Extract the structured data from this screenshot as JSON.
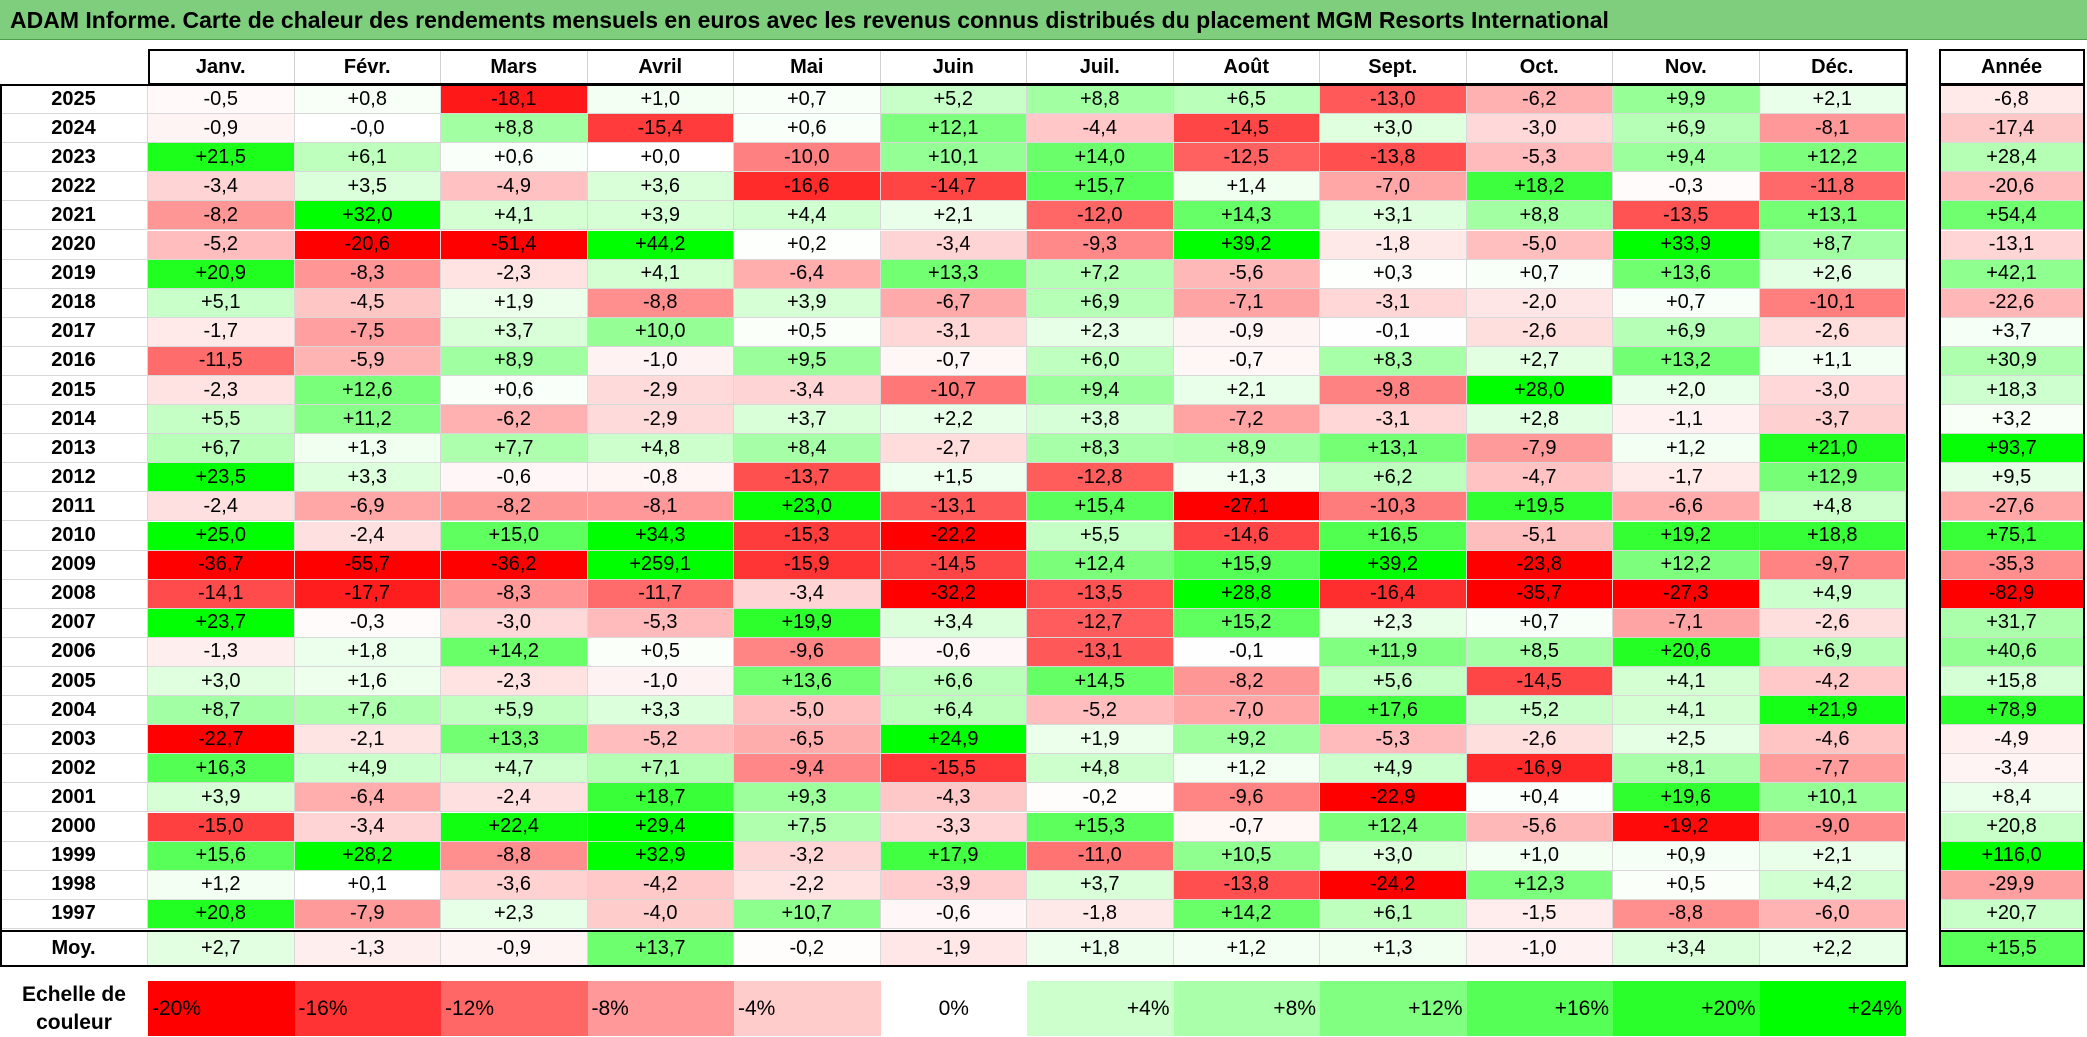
{
  "title": "ADAM Informe. Carte de chaleur des rendements mensuels en euros avec les revenus connus distribués du placement MGM Resorts International",
  "chart_data": {
    "type": "heatmap",
    "title": "ADAM Informe. Carte de chaleur des rendements mensuels en euros avec les revenus connus distribués du placement MGM Resorts International",
    "months": [
      "Janv.",
      "Févr.",
      "Mars",
      "Avril",
      "Mai",
      "Juin",
      "Juil.",
      "Août",
      "Sept.",
      "Oct.",
      "Nov.",
      "Déc."
    ],
    "year_column_label": "Année",
    "rows": [
      {
        "year": "2025",
        "values": [
          "-0,5",
          "+0,8",
          "-18,1",
          "+1,0",
          "+0,7",
          "+5,2",
          "+8,8",
          "+6,5",
          "-13,0",
          "-6,2",
          "+9,9",
          "+2,1"
        ],
        "annual": "-6,8"
      },
      {
        "year": "2024",
        "values": [
          "-0,9",
          "-0,0",
          "+8,8",
          "-15,4",
          "+0,6",
          "+12,1",
          "-4,4",
          "-14,5",
          "+3,0",
          "-3,0",
          "+6,9",
          "-8,1"
        ],
        "annual": "-17,4"
      },
      {
        "year": "2023",
        "values": [
          "+21,5",
          "+6,1",
          "+0,6",
          "+0,0",
          "-10,0",
          "+10,1",
          "+14,0",
          "-12,5",
          "-13,8",
          "-5,3",
          "+9,4",
          "+12,2"
        ],
        "annual": "+28,4"
      },
      {
        "year": "2022",
        "values": [
          "-3,4",
          "+3,5",
          "-4,9",
          "+3,6",
          "-16,6",
          "-14,7",
          "+15,7",
          "+1,4",
          "-7,0",
          "+18,2",
          "-0,3",
          "-11,8"
        ],
        "annual": "-20,6"
      },
      {
        "year": "2021",
        "values": [
          "-8,2",
          "+32,0",
          "+4,1",
          "+3,9",
          "+4,4",
          "+2,1",
          "-12,0",
          "+14,3",
          "+3,1",
          "+8,8",
          "-13,5",
          "+13,1"
        ],
        "annual": "+54,4"
      },
      {
        "year": "2020",
        "values": [
          "-5,2",
          "-20,6",
          "-51,4",
          "+44,2",
          "+0,2",
          "-3,4",
          "-9,3",
          "+39,2",
          "-1,8",
          "-5,0",
          "+33,9",
          "+8,7"
        ],
        "annual": "-13,1"
      },
      {
        "year": "2019",
        "values": [
          "+20,9",
          "-8,3",
          "-2,3",
          "+4,1",
          "-6,4",
          "+13,3",
          "+7,2",
          "-5,6",
          "+0,3",
          "+0,7",
          "+13,6",
          "+2,6"
        ],
        "annual": "+42,1"
      },
      {
        "year": "2018",
        "values": [
          "+5,1",
          "-4,5",
          "+1,9",
          "-8,8",
          "+3,9",
          "-6,7",
          "+6,9",
          "-7,1",
          "-3,1",
          "-2,0",
          "+0,7",
          "-10,1"
        ],
        "annual": "-22,6"
      },
      {
        "year": "2017",
        "values": [
          "-1,7",
          "-7,5",
          "+3,7",
          "+10,0",
          "+0,5",
          "-3,1",
          "+2,3",
          "-0,9",
          "-0,1",
          "-2,6",
          "+6,9",
          "-2,6"
        ],
        "annual": "+3,7"
      },
      {
        "year": "2016",
        "values": [
          "-11,5",
          "-5,9",
          "+8,9",
          "-1,0",
          "+9,5",
          "-0,7",
          "+6,0",
          "-0,7",
          "+8,3",
          "+2,7",
          "+13,2",
          "+1,1"
        ],
        "annual": "+30,9"
      },
      {
        "year": "2015",
        "values": [
          "-2,3",
          "+12,6",
          "+0,6",
          "-2,9",
          "-3,4",
          "-10,7",
          "+9,4",
          "+2,1",
          "-9,8",
          "+28,0",
          "+2,0",
          "-3,0"
        ],
        "annual": "+18,3"
      },
      {
        "year": "2014",
        "values": [
          "+5,5",
          "+11,2",
          "-6,2",
          "-2,9",
          "+3,7",
          "+2,2",
          "+3,8",
          "-7,2",
          "-3,1",
          "+2,8",
          "-1,1",
          "-3,7"
        ],
        "annual": "+3,2"
      },
      {
        "year": "2013",
        "values": [
          "+6,7",
          "+1,3",
          "+7,7",
          "+4,8",
          "+8,4",
          "-2,7",
          "+8,3",
          "+8,9",
          "+13,1",
          "-7,9",
          "+1,2",
          "+21,0"
        ],
        "annual": "+93,7"
      },
      {
        "year": "2012",
        "values": [
          "+23,5",
          "+3,3",
          "-0,6",
          "-0,8",
          "-13,7",
          "+1,5",
          "-12,8",
          "+1,3",
          "+6,2",
          "-4,7",
          "-1,7",
          "+12,9"
        ],
        "annual": "+9,5"
      },
      {
        "year": "2011",
        "values": [
          "-2,4",
          "-6,9",
          "-8,2",
          "-8,1",
          "+23,0",
          "-13,1",
          "+15,4",
          "-27,1",
          "-10,3",
          "+19,5",
          "-6,6",
          "+4,8"
        ],
        "annual": "-27,6"
      },
      {
        "year": "2010",
        "values": [
          "+25,0",
          "-2,4",
          "+15,0",
          "+34,3",
          "-15,3",
          "-22,2",
          "+5,5",
          "-14,6",
          "+16,5",
          "-5,1",
          "+19,2",
          "+18,8"
        ],
        "annual": "+75,1"
      },
      {
        "year": "2009",
        "values": [
          "-36,7",
          "-55,7",
          "-36,2",
          "+259,1",
          "-15,9",
          "-14,5",
          "+12,4",
          "+15,9",
          "+39,2",
          "-23,8",
          "+12,2",
          "-9,7"
        ],
        "annual": "-35,3"
      },
      {
        "year": "2008",
        "values": [
          "-14,1",
          "-17,7",
          "-8,3",
          "-11,7",
          "-3,4",
          "-32,2",
          "-13,5",
          "+28,8",
          "-16,4",
          "-35,7",
          "-27,3",
          "+4,9"
        ],
        "annual": "-82,9"
      },
      {
        "year": "2007",
        "values": [
          "+23,7",
          "-0,3",
          "-3,0",
          "-5,3",
          "+19,9",
          "+3,4",
          "-12,7",
          "+15,2",
          "+2,3",
          "+0,7",
          "-7,1",
          "-2,6"
        ],
        "annual": "+31,7"
      },
      {
        "year": "2006",
        "values": [
          "-1,3",
          "+1,8",
          "+14,2",
          "+0,5",
          "-9,6",
          "-0,6",
          "-13,1",
          "-0,1",
          "+11,9",
          "+8,5",
          "+20,6",
          "+6,9"
        ],
        "annual": "+40,6"
      },
      {
        "year": "2005",
        "values": [
          "+3,0",
          "+1,6",
          "-2,3",
          "-1,0",
          "+13,6",
          "+6,6",
          "+14,5",
          "-8,2",
          "+5,6",
          "-14,5",
          "+4,1",
          "-4,2"
        ],
        "annual": "+15,8"
      },
      {
        "year": "2004",
        "values": [
          "+8,7",
          "+7,6",
          "+5,9",
          "+3,3",
          "-5,0",
          "+6,4",
          "-5,2",
          "-7,0",
          "+17,6",
          "+5,2",
          "+4,1",
          "+21,9"
        ],
        "annual": "+78,9"
      },
      {
        "year": "2003",
        "values": [
          "-22,7",
          "-2,1",
          "+13,3",
          "-5,2",
          "-6,5",
          "+24,9",
          "+1,9",
          "+9,2",
          "-5,3",
          "-2,6",
          "+2,5",
          "-4,6"
        ],
        "annual": "-4,9"
      },
      {
        "year": "2002",
        "values": [
          "+16,3",
          "+4,9",
          "+4,7",
          "+7,1",
          "-9,4",
          "-15,5",
          "+4,8",
          "+1,2",
          "+4,9",
          "-16,9",
          "+8,1",
          "-7,7"
        ],
        "annual": "-3,4"
      },
      {
        "year": "2001",
        "values": [
          "+3,9",
          "-6,4",
          "-2,4",
          "+18,7",
          "+9,3",
          "-4,3",
          "-0,2",
          "-9,6",
          "-22,9",
          "+0,4",
          "+19,6",
          "+10,1"
        ],
        "annual": "+8,4"
      },
      {
        "year": "2000",
        "values": [
          "-15,0",
          "-3,4",
          "+22,4",
          "+29,4",
          "+7,5",
          "-3,3",
          "+15,3",
          "-0,7",
          "+12,4",
          "-5,6",
          "-19,2",
          "-9,0"
        ],
        "annual": "+20,8"
      },
      {
        "year": "1999",
        "values": [
          "+15,6",
          "+28,2",
          "-8,8",
          "+32,9",
          "-3,2",
          "+17,9",
          "-11,0",
          "+10,5",
          "+3,0",
          "+1,0",
          "+0,9",
          "+2,1"
        ],
        "annual": "+116,0"
      },
      {
        "year": "1998",
        "values": [
          "+1,2",
          "+0,1",
          "-3,6",
          "-4,2",
          "-2,2",
          "-3,9",
          "+3,7",
          "-13,8",
          "-24,2",
          "+12,3",
          "+0,5",
          "+4,2"
        ],
        "annual": "-29,9"
      },
      {
        "year": "1997",
        "values": [
          "+20,8",
          "-7,9",
          "+2,3",
          "-4,0",
          "+10,7",
          "-0,6",
          "-1,8",
          "+14,2",
          "+6,1",
          "-1,5",
          "-8,8",
          "-6,0"
        ],
        "annual": "+20,7"
      }
    ],
    "average": {
      "label": "Moy.",
      "values": [
        "+2,7",
        "-1,3",
        "-0,9",
        "+13,7",
        "-0,2",
        "-1,9",
        "+1,8",
        "+1,2",
        "+1,3",
        "-1,0",
        "+3,4",
        "+2,2"
      ],
      "annual": "+15,5"
    },
    "color_scale": {
      "label": "Echelle de couleur",
      "steps": [
        {
          "label": "-20%",
          "value": -20,
          "color": "#ff0000"
        },
        {
          "label": "-16%",
          "value": -16,
          "color": "#ff3333"
        },
        {
          "label": "-12%",
          "value": -12,
          "color": "#ff6666"
        },
        {
          "label": "-8%",
          "value": -8,
          "color": "#ff9999"
        },
        {
          "label": "-4%",
          "value": -4,
          "color": "#ffcccc"
        },
        {
          "label": "0%",
          "value": 0,
          "color": "#ffffff"
        },
        {
          "label": "+4%",
          "value": 4,
          "color": "#ccffcc"
        },
        {
          "label": "+8%",
          "value": 8,
          "color": "#aaffaa"
        },
        {
          "label": "+12%",
          "value": 12,
          "color": "#80ff80"
        },
        {
          "label": "+16%",
          "value": 16,
          "color": "#55ff55"
        },
        {
          "label": "+20%",
          "value": 20,
          "color": "#2bff2b"
        },
        {
          "label": "+24%",
          "value": 24,
          "color": "#00ff00"
        }
      ]
    }
  }
}
